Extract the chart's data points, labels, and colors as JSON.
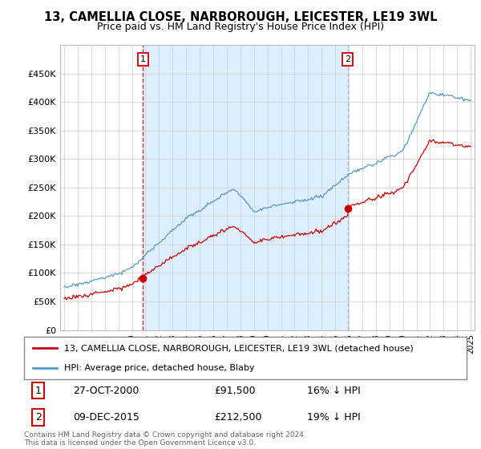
{
  "title": "13, CAMELLIA CLOSE, NARBOROUGH, LEICESTER, LE19 3WL",
  "subtitle": "Price paid vs. HM Land Registry's House Price Index (HPI)",
  "ylim": [
    0,
    500000
  ],
  "yticks": [
    0,
    50000,
    100000,
    150000,
    200000,
    250000,
    300000,
    350000,
    400000,
    450000
  ],
  "sale1_date": 2000.82,
  "sale1_price": 91500,
  "sale2_date": 2015.93,
  "sale2_price": 212500,
  "legend_entries": [
    "13, CAMELLIA CLOSE, NARBOROUGH, LEICESTER, LE19 3WL (detached house)",
    "HPI: Average price, detached house, Blaby"
  ],
  "annotation1": [
    "1",
    "27-OCT-2000",
    "£91,500",
    "16% ↓ HPI"
  ],
  "annotation2": [
    "2",
    "09-DEC-2015",
    "£212,500",
    "19% ↓ HPI"
  ],
  "footer": "Contains HM Land Registry data © Crown copyright and database right 2024.\nThis data is licensed under the Open Government Licence v3.0.",
  "line_color_red": "#cc0000",
  "line_color_blue": "#5599cc",
  "vline1_color": "#cc0000",
  "vline2_color": "#aaaacc",
  "fill_color": "#ddeeff",
  "background_color": "#ffffff",
  "grid_color": "#cccccc"
}
